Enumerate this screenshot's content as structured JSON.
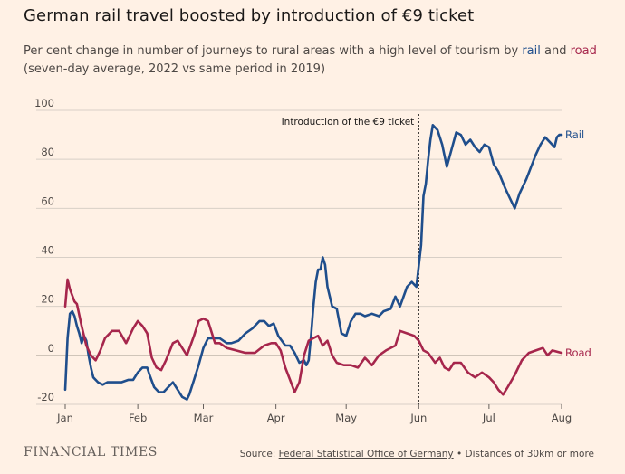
{
  "title": "German rail travel boosted by introduction of €9 ticket",
  "subtitle": {
    "prefix": "Per cent change in number of journeys to rural areas with a high level of tourism by ",
    "rail_word": "rail",
    "mid": " and ",
    "road_word": "road",
    "suffix": "(seven-day average, 2022 vs same period in 2019)"
  },
  "footer": {
    "brand": "FINANCIAL TIMES",
    "source_prefix": "Source: ",
    "source_link": "Federal Statistical Office of Germany",
    "source_suffix": " • Distances of 30km or more"
  },
  "colors": {
    "background": "#fff1e5",
    "rail": "#1f4e8c",
    "road": "#a6264c",
    "grid": "#d8cfc6"
  },
  "chart_data": {
    "type": "line",
    "title": "German rail travel boosted by introduction of €9 ticket",
    "x_axis": {
      "type": "date",
      "range": [
        "2022-01-01",
        "2022-08-01"
      ],
      "ticks": [
        "Jan",
        "Feb",
        "Mar",
        "Apr",
        "May",
        "Jun",
        "Jul",
        "Aug"
      ]
    },
    "ylim": [
      -20,
      100
    ],
    "yticks": [
      -20,
      0,
      20,
      40,
      60,
      80,
      100
    ],
    "grid": "horizontal",
    "legend": "direct labels at line ends",
    "annotation": {
      "label": "Introduction of the €9 ticket",
      "x": "2022-06-01"
    },
    "series": [
      {
        "name": "Rail",
        "points": [
          [
            "2022-01-01",
            -14
          ],
          [
            "2022-01-02",
            7
          ],
          [
            "2022-01-03",
            17
          ],
          [
            "2022-01-04",
            18
          ],
          [
            "2022-01-05",
            16
          ],
          [
            "2022-01-06",
            12
          ],
          [
            "2022-01-07",
            9
          ],
          [
            "2022-01-08",
            5
          ],
          [
            "2022-01-09",
            8
          ],
          [
            "2022-01-10",
            6
          ],
          [
            "2022-01-11",
            0
          ],
          [
            "2022-01-12",
            -5
          ],
          [
            "2022-01-13",
            -9
          ],
          [
            "2022-01-15",
            -11
          ],
          [
            "2022-01-17",
            -12
          ],
          [
            "2022-01-19",
            -11
          ],
          [
            "2022-01-22",
            -11
          ],
          [
            "2022-01-25",
            -11
          ],
          [
            "2022-01-28",
            -10
          ],
          [
            "2022-01-30",
            -10
          ],
          [
            "2022-02-01",
            -7
          ],
          [
            "2022-02-03",
            -5
          ],
          [
            "2022-02-05",
            -5
          ],
          [
            "2022-02-06",
            -8
          ],
          [
            "2022-02-08",
            -13
          ],
          [
            "2022-02-10",
            -15
          ],
          [
            "2022-02-12",
            -15
          ],
          [
            "2022-02-14",
            -13
          ],
          [
            "2022-02-16",
            -11
          ],
          [
            "2022-02-18",
            -14
          ],
          [
            "2022-02-20",
            -17
          ],
          [
            "2022-02-22",
            -18
          ],
          [
            "2022-02-23",
            -16
          ],
          [
            "2022-02-25",
            -10
          ],
          [
            "2022-02-27",
            -4
          ],
          [
            "2022-03-01",
            3
          ],
          [
            "2022-03-03",
            7
          ],
          [
            "2022-03-05",
            7
          ],
          [
            "2022-03-08",
            7
          ],
          [
            "2022-03-11",
            5
          ],
          [
            "2022-03-13",
            5
          ],
          [
            "2022-03-16",
            6
          ],
          [
            "2022-03-19",
            9
          ],
          [
            "2022-03-22",
            11
          ],
          [
            "2022-03-25",
            14
          ],
          [
            "2022-03-27",
            14
          ],
          [
            "2022-03-29",
            12
          ],
          [
            "2022-03-31",
            13
          ],
          [
            "2022-04-02",
            8
          ],
          [
            "2022-04-05",
            4
          ],
          [
            "2022-04-07",
            4
          ],
          [
            "2022-04-09",
            1
          ],
          [
            "2022-04-11",
            -3
          ],
          [
            "2022-04-13",
            -2
          ],
          [
            "2022-04-14",
            -4
          ],
          [
            "2022-04-15",
            -2
          ],
          [
            "2022-04-16",
            8
          ],
          [
            "2022-04-17",
            20
          ],
          [
            "2022-04-18",
            30
          ],
          [
            "2022-04-19",
            35
          ],
          [
            "2022-04-20",
            35
          ],
          [
            "2022-04-21",
            40
          ],
          [
            "2022-04-22",
            37
          ],
          [
            "2022-04-23",
            28
          ],
          [
            "2022-04-25",
            20
          ],
          [
            "2022-04-27",
            19
          ],
          [
            "2022-04-29",
            9
          ],
          [
            "2022-05-01",
            8
          ],
          [
            "2022-05-03",
            14
          ],
          [
            "2022-05-05",
            17
          ],
          [
            "2022-05-07",
            17
          ],
          [
            "2022-05-09",
            16
          ],
          [
            "2022-05-12",
            17
          ],
          [
            "2022-05-15",
            16
          ],
          [
            "2022-05-17",
            18
          ],
          [
            "2022-05-20",
            19
          ],
          [
            "2022-05-22",
            24
          ],
          [
            "2022-05-24",
            20
          ],
          [
            "2022-05-27",
            28
          ],
          [
            "2022-05-29",
            30
          ],
          [
            "2022-05-31",
            28
          ],
          [
            "2022-06-02",
            45
          ],
          [
            "2022-06-03",
            65
          ],
          [
            "2022-06-04",
            70
          ],
          [
            "2022-06-05",
            80
          ],
          [
            "2022-06-06",
            88
          ],
          [
            "2022-06-07",
            94
          ],
          [
            "2022-06-09",
            92
          ],
          [
            "2022-06-11",
            86
          ],
          [
            "2022-06-13",
            77
          ],
          [
            "2022-06-15",
            84
          ],
          [
            "2022-06-17",
            91
          ],
          [
            "2022-06-19",
            90
          ],
          [
            "2022-06-21",
            86
          ],
          [
            "2022-06-23",
            88
          ],
          [
            "2022-06-25",
            85
          ],
          [
            "2022-06-27",
            83
          ],
          [
            "2022-06-29",
            86
          ],
          [
            "2022-07-01",
            85
          ],
          [
            "2022-07-03",
            78
          ],
          [
            "2022-07-05",
            75
          ],
          [
            "2022-07-08",
            68
          ],
          [
            "2022-07-10",
            64
          ],
          [
            "2022-07-12",
            60
          ],
          [
            "2022-07-14",
            66
          ],
          [
            "2022-07-17",
            72
          ],
          [
            "2022-07-19",
            77
          ],
          [
            "2022-07-21",
            82
          ],
          [
            "2022-07-23",
            86
          ],
          [
            "2022-07-25",
            89
          ],
          [
            "2022-07-27",
            87
          ],
          [
            "2022-07-29",
            85
          ],
          [
            "2022-07-30",
            89
          ],
          [
            "2022-07-31",
            90
          ],
          [
            "2022-08-01",
            90
          ]
        ]
      },
      {
        "name": "Road",
        "points": [
          [
            "2022-01-01",
            20
          ],
          [
            "2022-01-02",
            31
          ],
          [
            "2022-01-03",
            27
          ],
          [
            "2022-01-05",
            22
          ],
          [
            "2022-01-06",
            21
          ],
          [
            "2022-01-08",
            12
          ],
          [
            "2022-01-10",
            4
          ],
          [
            "2022-01-12",
            0
          ],
          [
            "2022-01-14",
            -2
          ],
          [
            "2022-01-16",
            2
          ],
          [
            "2022-01-18",
            7
          ],
          [
            "2022-01-21",
            10
          ],
          [
            "2022-01-24",
            10
          ],
          [
            "2022-01-27",
            5
          ],
          [
            "2022-01-30",
            11
          ],
          [
            "2022-02-01",
            14
          ],
          [
            "2022-02-03",
            12
          ],
          [
            "2022-02-05",
            9
          ],
          [
            "2022-02-07",
            -1
          ],
          [
            "2022-02-09",
            -5
          ],
          [
            "2022-02-11",
            -6
          ],
          [
            "2022-02-13",
            -2
          ],
          [
            "2022-02-16",
            5
          ],
          [
            "2022-02-18",
            6
          ],
          [
            "2022-02-20",
            3
          ],
          [
            "2022-02-22",
            0
          ],
          [
            "2022-02-25",
            8
          ],
          [
            "2022-02-27",
            14
          ],
          [
            "2022-03-01",
            15
          ],
          [
            "2022-03-03",
            14
          ],
          [
            "2022-03-06",
            5
          ],
          [
            "2022-03-08",
            5
          ],
          [
            "2022-03-11",
            3
          ],
          [
            "2022-03-15",
            2
          ],
          [
            "2022-03-19",
            1
          ],
          [
            "2022-03-23",
            1
          ],
          [
            "2022-03-27",
            4
          ],
          [
            "2022-03-30",
            5
          ],
          [
            "2022-04-01",
            5
          ],
          [
            "2022-04-03",
            2
          ],
          [
            "2022-04-05",
            -5
          ],
          [
            "2022-04-07",
            -10
          ],
          [
            "2022-04-09",
            -15
          ],
          [
            "2022-04-11",
            -11
          ],
          [
            "2022-04-13",
            0
          ],
          [
            "2022-04-15",
            6
          ],
          [
            "2022-04-17",
            7
          ],
          [
            "2022-04-19",
            8
          ],
          [
            "2022-04-21",
            4
          ],
          [
            "2022-04-23",
            6
          ],
          [
            "2022-04-25",
            0
          ],
          [
            "2022-04-27",
            -3
          ],
          [
            "2022-04-30",
            -4
          ],
          [
            "2022-05-03",
            -4
          ],
          [
            "2022-05-06",
            -5
          ],
          [
            "2022-05-09",
            -1
          ],
          [
            "2022-05-12",
            -4
          ],
          [
            "2022-05-15",
            0
          ],
          [
            "2022-05-18",
            2
          ],
          [
            "2022-05-22",
            4
          ],
          [
            "2022-05-24",
            10
          ],
          [
            "2022-05-27",
            9
          ],
          [
            "2022-05-30",
            8
          ],
          [
            "2022-06-01",
            6
          ],
          [
            "2022-06-03",
            2
          ],
          [
            "2022-06-05",
            1
          ],
          [
            "2022-06-08",
            -3
          ],
          [
            "2022-06-10",
            -1
          ],
          [
            "2022-06-12",
            -5
          ],
          [
            "2022-06-14",
            -6
          ],
          [
            "2022-06-16",
            -3
          ],
          [
            "2022-06-19",
            -3
          ],
          [
            "2022-06-22",
            -7
          ],
          [
            "2022-06-25",
            -9
          ],
          [
            "2022-06-28",
            -7
          ],
          [
            "2022-07-01",
            -9
          ],
          [
            "2022-07-03",
            -11
          ],
          [
            "2022-07-05",
            -14
          ],
          [
            "2022-07-07",
            -16
          ],
          [
            "2022-07-09",
            -13
          ],
          [
            "2022-07-12",
            -8
          ],
          [
            "2022-07-15",
            -2
          ],
          [
            "2022-07-18",
            1
          ],
          [
            "2022-07-21",
            2
          ],
          [
            "2022-07-24",
            3
          ],
          [
            "2022-07-26",
            0
          ],
          [
            "2022-07-28",
            2
          ],
          [
            "2022-08-01",
            1
          ]
        ]
      }
    ]
  }
}
